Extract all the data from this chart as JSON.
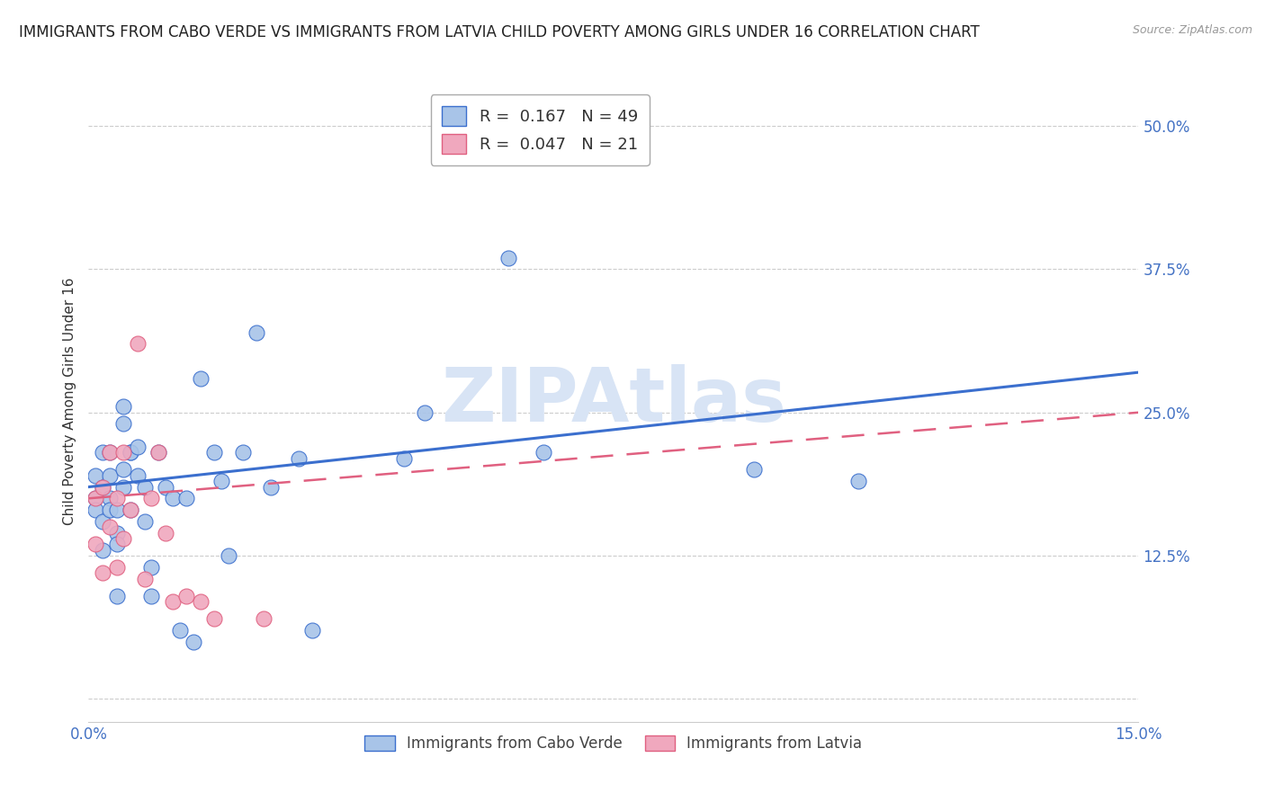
{
  "title": "IMMIGRANTS FROM CABO VERDE VS IMMIGRANTS FROM LATVIA CHILD POVERTY AMONG GIRLS UNDER 16 CORRELATION CHART",
  "source": "Source: ZipAtlas.com",
  "ylabel": "Child Poverty Among Girls Under 16",
  "xlim": [
    0.0,
    0.15
  ],
  "ylim": [
    -0.02,
    0.54
  ],
  "cabo_verde_R": 0.167,
  "cabo_verde_N": 49,
  "latvia_R": 0.047,
  "latvia_N": 21,
  "cabo_verde_color": "#a8c4e8",
  "latvia_color": "#f0a8be",
  "cabo_verde_line_color": "#3b6fce",
  "latvia_line_color": "#e06080",
  "watermark": "ZIPAtlas",
  "watermark_color": "#d8e4f5",
  "cabo_verde_x": [
    0.001,
    0.001,
    0.001,
    0.002,
    0.002,
    0.002,
    0.002,
    0.003,
    0.003,
    0.003,
    0.003,
    0.004,
    0.004,
    0.004,
    0.004,
    0.005,
    0.005,
    0.005,
    0.005,
    0.006,
    0.006,
    0.006,
    0.007,
    0.007,
    0.008,
    0.008,
    0.009,
    0.009,
    0.01,
    0.011,
    0.012,
    0.013,
    0.014,
    0.015,
    0.016,
    0.018,
    0.019,
    0.02,
    0.022,
    0.024,
    0.026,
    0.03,
    0.032,
    0.045,
    0.048,
    0.06,
    0.065,
    0.095,
    0.11
  ],
  "cabo_verde_y": [
    0.175,
    0.195,
    0.165,
    0.215,
    0.185,
    0.155,
    0.13,
    0.195,
    0.175,
    0.165,
    0.215,
    0.145,
    0.165,
    0.135,
    0.09,
    0.24,
    0.2,
    0.255,
    0.185,
    0.215,
    0.215,
    0.165,
    0.22,
    0.195,
    0.185,
    0.155,
    0.115,
    0.09,
    0.215,
    0.185,
    0.175,
    0.06,
    0.175,
    0.05,
    0.28,
    0.215,
    0.19,
    0.125,
    0.215,
    0.32,
    0.185,
    0.21,
    0.06,
    0.21,
    0.25,
    0.385,
    0.215,
    0.2,
    0.19
  ],
  "latvia_x": [
    0.001,
    0.001,
    0.002,
    0.002,
    0.003,
    0.003,
    0.004,
    0.004,
    0.005,
    0.005,
    0.006,
    0.007,
    0.008,
    0.009,
    0.01,
    0.011,
    0.012,
    0.014,
    0.016,
    0.018,
    0.025
  ],
  "latvia_y": [
    0.175,
    0.135,
    0.185,
    0.11,
    0.15,
    0.215,
    0.175,
    0.115,
    0.215,
    0.14,
    0.165,
    0.31,
    0.105,
    0.175,
    0.215,
    0.145,
    0.085,
    0.09,
    0.085,
    0.07,
    0.07
  ],
  "cabo_verde_trendline_x": [
    0.0,
    0.15
  ],
  "cabo_verde_trendline_y": [
    0.185,
    0.285
  ],
  "latvia_trendline_x": [
    0.0,
    0.15
  ],
  "latvia_trendline_y": [
    0.175,
    0.25
  ],
  "background_color": "#ffffff",
  "grid_color": "#cccccc",
  "tick_color": "#4472c4",
  "title_fontsize": 12,
  "axis_label_fontsize": 11,
  "tick_fontsize": 12
}
